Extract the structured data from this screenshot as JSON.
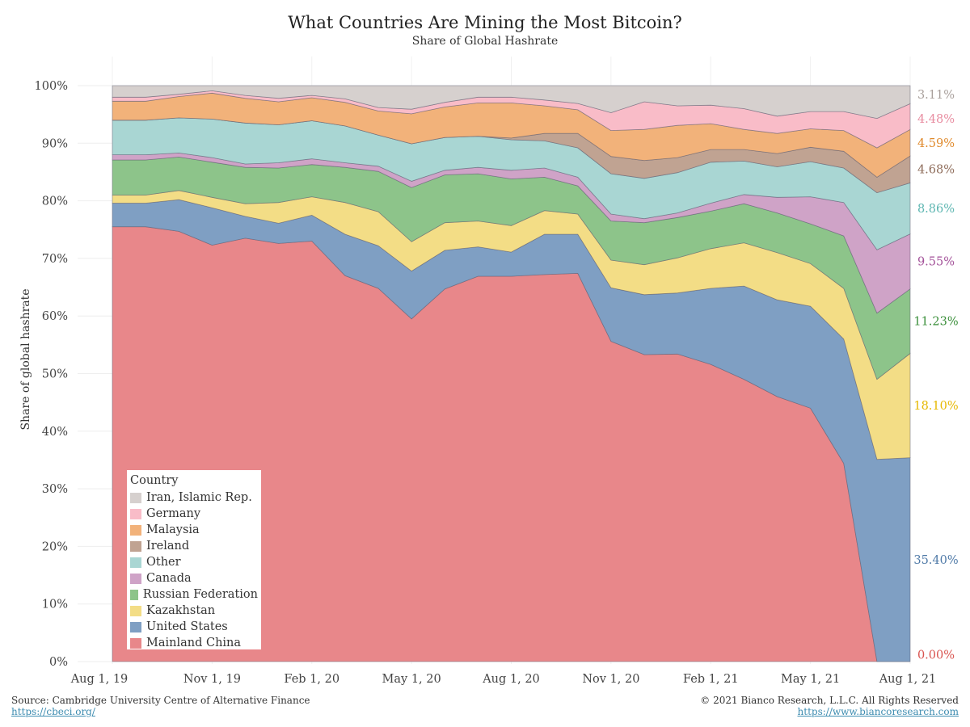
{
  "chart_data": {
    "type": "area",
    "stacked": true,
    "title": "What Countries Are Mining the Most Bitcoin?",
    "subtitle": "Share of Global Hashrate",
    "ylabel": "Share of global hashrate",
    "xlabel": "",
    "ylim": [
      0,
      100
    ],
    "y_ticks": [
      "0%",
      "10%",
      "20%",
      "30%",
      "40%",
      "50%",
      "60%",
      "70%",
      "80%",
      "90%",
      "100%"
    ],
    "x_ticks": [
      "Aug 1, 19",
      "Nov 1, 19",
      "Feb 1, 20",
      "May 1, 20",
      "Aug 1, 20",
      "Nov 1, 20",
      "Feb 1, 21",
      "May 1, 21",
      "Aug 1, 21"
    ],
    "x_tick_months": [
      0,
      3,
      6,
      9,
      12,
      15,
      18,
      21,
      24
    ],
    "grid": "horizontal",
    "legend_position": "bottom-left",
    "legend_title": "Country",
    "x_months": [
      "Sep 2019",
      "Oct 2019",
      "Nov 2019",
      "Dec 2019",
      "Jan 2020",
      "Feb 2020",
      "Mar 2020",
      "Apr 2020",
      "May 2020",
      "Jun 2020",
      "Jul 2020",
      "Aug 2020",
      "Sep 2020",
      "Oct 2020",
      "Nov 2020",
      "Dec 2020",
      "Jan 2021",
      "Feb 2021",
      "Mar 2021",
      "Apr 2021",
      "May 2021",
      "Jun 2021",
      "Jul 2021",
      "Aug 2021"
    ],
    "x_month_index": [
      1,
      2,
      3,
      4,
      5,
      6,
      7,
      8,
      9,
      10,
      11,
      12,
      13,
      14,
      15,
      16,
      17,
      18,
      19,
      20,
      21,
      22,
      23,
      24
    ],
    "series": [
      {
        "name": "Mainland China",
        "color": "#e8878a",
        "end_label": "0.00%",
        "label_color": "#d9534f",
        "values": [
          75.5,
          74.7,
          72.3,
          73.5,
          72.6,
          73.0,
          67.0,
          64.8,
          59.5,
          64.7,
          66.9,
          66.9,
          67.2,
          67.4,
          55.6,
          53.3,
          53.4,
          51.6,
          49.0,
          46.0,
          44.0,
          34.4,
          0.0,
          0.0
        ]
      },
      {
        "name": "United States",
        "color": "#7f9fc3",
        "end_label": "35.40%",
        "label_color": "#4e79a7",
        "values": [
          4.1,
          5.5,
          6.5,
          3.8,
          3.5,
          4.5,
          7.2,
          7.4,
          8.3,
          6.7,
          5.1,
          4.2,
          7.0,
          6.8,
          9.3,
          10.4,
          10.6,
          13.2,
          16.2,
          16.8,
          17.7,
          21.6,
          35.1,
          35.4
        ]
      },
      {
        "name": "Kazakhstan",
        "color": "#f3dd86",
        "end_label": "18.10%",
        "label_color": "#e6b800",
        "values": [
          1.4,
          1.6,
          1.8,
          2.2,
          3.6,
          3.2,
          5.5,
          5.9,
          5.1,
          4.8,
          4.5,
          4.6,
          4.1,
          3.5,
          4.8,
          5.2,
          6.1,
          6.9,
          7.5,
          8.2,
          7.4,
          8.8,
          13.9,
          18.1
        ]
      },
      {
        "name": "Russian Federation",
        "color": "#8dc48a",
        "end_label": "11.23%",
        "label_color": "#3a8f3a",
        "values": [
          6.1,
          5.8,
          6.1,
          6.3,
          6.0,
          5.6,
          6.1,
          7.0,
          9.4,
          8.3,
          8.2,
          8.1,
          5.8,
          4.9,
          6.8,
          7.3,
          7.0,
          6.5,
          6.8,
          6.9,
          6.9,
          9.1,
          11.5,
          11.2
        ]
      },
      {
        "name": "Canada",
        "color": "#cfa3c7",
        "end_label": "9.55%",
        "label_color": "#a35199",
        "values": [
          0.9,
          0.7,
          0.8,
          0.6,
          0.9,
          1.0,
          0.8,
          0.9,
          1.1,
          0.8,
          1.1,
          1.5,
          1.6,
          1.5,
          1.2,
          0.7,
          0.8,
          1.4,
          1.6,
          2.7,
          4.7,
          5.8,
          11.0,
          9.55
        ]
      },
      {
        "name": "Other",
        "color": "#a9d6d3",
        "end_label": "8.86%",
        "label_color": "#5bb5b0",
        "values": [
          6.0,
          6.1,
          6.7,
          7.1,
          6.6,
          6.6,
          6.4,
          5.4,
          6.5,
          5.7,
          5.4,
          5.3,
          4.7,
          5.1,
          7.0,
          7.0,
          7.0,
          7.1,
          5.8,
          5.3,
          6.1,
          6.0,
          9.9,
          8.86
        ]
      },
      {
        "name": "Ireland",
        "color": "#c0a392",
        "end_label": "4.68%",
        "label_color": "#8e6c5a",
        "values": [
          0.0,
          0.0,
          0.0,
          0.0,
          0.0,
          0.0,
          0.0,
          0.0,
          0.0,
          0.0,
          0.0,
          0.3,
          1.3,
          2.5,
          3.0,
          3.1,
          2.6,
          2.2,
          2.0,
          2.3,
          2.5,
          2.9,
          2.7,
          4.68
        ]
      },
      {
        "name": "Malaysia",
        "color": "#f2b27a",
        "end_label": "4.59%",
        "label_color": "#e08a2c",
        "values": [
          3.3,
          3.7,
          4.5,
          4.3,
          4.0,
          4.0,
          4.1,
          4.2,
          5.2,
          5.3,
          5.8,
          6.1,
          4.8,
          4.1,
          4.5,
          5.4,
          5.6,
          4.5,
          3.5,
          3.5,
          3.2,
          3.6,
          5.1,
          4.59
        ]
      },
      {
        "name": "Germany",
        "color": "#f9bcc8",
        "end_label": "4.48%",
        "label_color": "#e88ca0",
        "values": [
          0.7,
          0.4,
          0.4,
          0.5,
          0.6,
          0.4,
          0.6,
          0.6,
          0.8,
          0.8,
          1.0,
          1.0,
          1.0,
          1.1,
          3.1,
          4.8,
          3.4,
          3.2,
          3.6,
          3.0,
          3.0,
          3.3,
          5.1,
          4.48
        ]
      },
      {
        "name": "Iran, Islamic Rep.",
        "color": "#d6d0ce",
        "end_label": "3.11%",
        "label_color": "#a89f9b",
        "values": [
          2.0,
          1.5,
          0.9,
          1.7,
          2.8,
          1.7,
          2.3,
          3.8,
          4.1,
          2.9,
          2.0,
          2.0,
          2.5,
          3.1,
          4.7,
          2.8,
          3.5,
          3.4,
          4.0,
          5.3,
          4.5,
          3.3,
          3.7,
          3.11
        ]
      }
    ]
  },
  "footer": {
    "source": "Source: Cambridge University Centre of Alternative Finance",
    "source_url": "https://cbeci.org/",
    "copyright": "© 2021 Bianco Research, L.L.C. All Rights Reserved",
    "copyright_url": "https://www.biancoresearch.com"
  }
}
